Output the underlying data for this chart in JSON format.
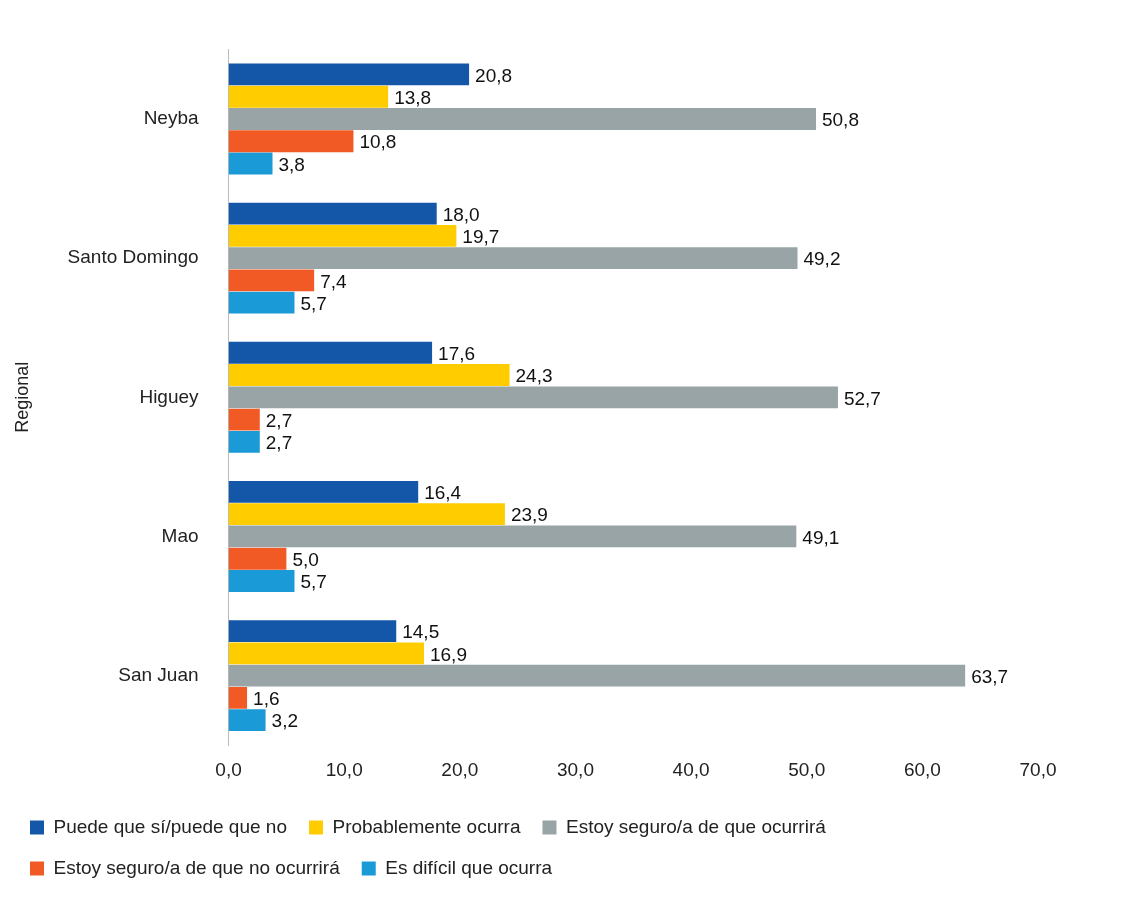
{
  "chart_data": {
    "type": "bar",
    "orientation": "horizontal",
    "ylabel": "Regional",
    "categories": [
      "Neyba",
      "Santo Domingo",
      "Higuey",
      "Mao",
      "San Juan"
    ],
    "series": [
      {
        "name": "Puede que sí/puede que no",
        "color": "#1457a8",
        "values": [
          20.8,
          18.0,
          17.6,
          16.4,
          14.5
        ],
        "value_labels": [
          "20,8",
          "18,0",
          "17,6",
          "16,4",
          "14,5"
        ]
      },
      {
        "name": "Probablemente ocurra",
        "color": "#ffcc00",
        "values": [
          13.8,
          19.7,
          24.3,
          23.9,
          16.9
        ],
        "value_labels": [
          "13,8",
          "19,7",
          "24,3",
          "23,9",
          "16,9"
        ]
      },
      {
        "name": "Estoy seguro/a de que ocurrirá",
        "color": "#98a4a6",
        "values": [
          50.8,
          49.2,
          52.7,
          49.1,
          63.7
        ],
        "value_labels": [
          "50,8",
          "49,2",
          "52,7",
          "49,1",
          "63,7"
        ]
      },
      {
        "name": "Estoy seguro/a de que no ocurrirá",
        "color": "#f15a24",
        "values": [
          10.8,
          7.4,
          2.7,
          5.0,
          1.6
        ],
        "value_labels": [
          "10,8",
          "7,4",
          "2,7",
          "5,0",
          "1,6"
        ]
      },
      {
        "name": "Es difícil que ocurra",
        "color": "#1a9ad6",
        "values": [
          3.8,
          5.7,
          2.7,
          5.7,
          3.2
        ],
        "value_labels": [
          "3,8",
          "5,7",
          "2,7",
          "5,7",
          "3,2"
        ]
      }
    ],
    "xlim": [
      0,
      70
    ],
    "xticks": [
      {
        "value": 0,
        "label": "0,0"
      },
      {
        "value": 10,
        "label": "10,0"
      },
      {
        "value": 20,
        "label": "20,0"
      },
      {
        "value": 30,
        "label": "30,0"
      },
      {
        "value": 40,
        "label": "40,0"
      },
      {
        "value": 50,
        "label": "50,0"
      },
      {
        "value": 60,
        "label": "60,0"
      },
      {
        "value": 70,
        "label": "70,0"
      }
    ],
    "grid": false,
    "legend": "bottom"
  }
}
